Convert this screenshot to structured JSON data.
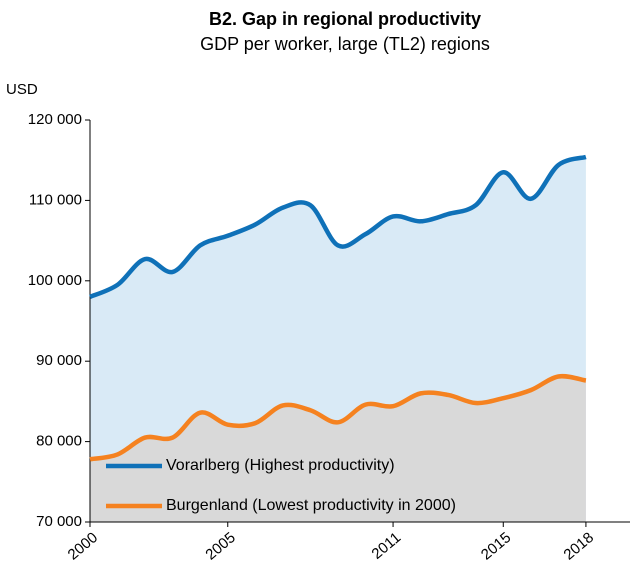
{
  "chart_data": {
    "type": "line",
    "title": "B2. Gap in regional productivity",
    "subtitle": "GDP per worker, large (TL2) regions",
    "ylabel": "USD",
    "x": [
      2000,
      2001,
      2002,
      2003,
      2004,
      2005,
      2006,
      2007,
      2008,
      2009,
      2010,
      2011,
      2012,
      2013,
      2014,
      2015,
      2016,
      2017,
      2018
    ],
    "series": [
      {
        "name": "Vorarlberg (Highest productivity)",
        "color": "#0f71b8",
        "area_color": "#d9eaf6",
        "values": [
          98000,
          99500,
          102700,
          101100,
          104400,
          105600,
          107000,
          109100,
          109400,
          104400,
          105800,
          108000,
          107400,
          108300,
          109400,
          113500,
          110200,
          114400,
          115400
        ]
      },
      {
        "name": "Burgenland (Lowest productivity in 2000)",
        "color": "#f58220",
        "area_color": "#d9d9d9",
        "values": [
          77800,
          78400,
          80500,
          80500,
          83600,
          82100,
          82300,
          84500,
          83900,
          82400,
          84600,
          84400,
          86000,
          85800,
          84800,
          85400,
          86400,
          88100,
          87600
        ]
      }
    ],
    "xlim": [
      2000,
      2019.6
    ],
    "xticks": [
      2000,
      2005,
      2011,
      2015,
      2018
    ],
    "ylim": [
      70000,
      120000
    ],
    "yticks": [
      {
        "value": 70000,
        "label": "70 000"
      },
      {
        "value": 80000,
        "label": "80 000"
      },
      {
        "value": 90000,
        "label": "90 000"
      },
      {
        "value": 100000,
        "label": "100 000"
      },
      {
        "value": 110000,
        "label": "110 000"
      },
      {
        "value": 120000,
        "label": "120 000"
      }
    ],
    "legend": "lower left"
  }
}
